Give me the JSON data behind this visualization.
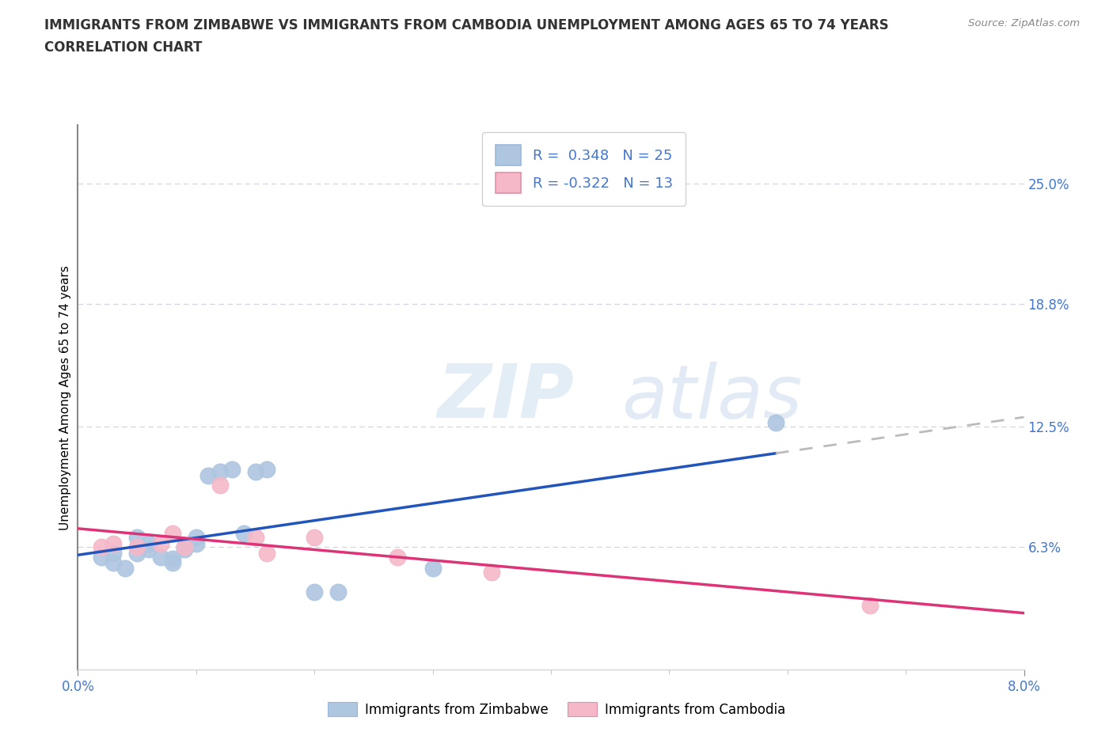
{
  "title_line1": "IMMIGRANTS FROM ZIMBABWE VS IMMIGRANTS FROM CAMBODIA UNEMPLOYMENT AMONG AGES 65 TO 74 YEARS",
  "title_line2": "CORRELATION CHART",
  "source_text": "Source: ZipAtlas.com",
  "ylabel": "Unemployment Among Ages 65 to 74 years",
  "xlim": [
    0.0,
    0.08
  ],
  "ylim": [
    0.0,
    0.28
  ],
  "ytick_labels": [
    "6.3%",
    "12.5%",
    "18.8%",
    "25.0%"
  ],
  "ytick_values": [
    0.063,
    0.125,
    0.188,
    0.25
  ],
  "zimbabwe_color": "#aec6e0",
  "cambodia_color": "#f4b8c8",
  "zimbabwe_line_color": "#2255bb",
  "cambodia_line_color": "#dd3377",
  "grid_color": "#d0d0e0",
  "background_color": "#ffffff",
  "zimbabwe_x": [
    0.002,
    0.003,
    0.003,
    0.004,
    0.005,
    0.005,
    0.006,
    0.006,
    0.007,
    0.008,
    0.008,
    0.009,
    0.009,
    0.01,
    0.01,
    0.011,
    0.012,
    0.013,
    0.014,
    0.015,
    0.016,
    0.02,
    0.022,
    0.03,
    0.059
  ],
  "zimbabwe_y": [
    0.058,
    0.06,
    0.055,
    0.052,
    0.06,
    0.068,
    0.062,
    0.065,
    0.058,
    0.055,
    0.057,
    0.063,
    0.062,
    0.065,
    0.068,
    0.1,
    0.102,
    0.103,
    0.07,
    0.102,
    0.103,
    0.04,
    0.04,
    0.052,
    0.127
  ],
  "cambodia_x": [
    0.002,
    0.003,
    0.005,
    0.007,
    0.008,
    0.009,
    0.012,
    0.015,
    0.016,
    0.02,
    0.027,
    0.035,
    0.067
  ],
  "cambodia_y": [
    0.063,
    0.065,
    0.063,
    0.065,
    0.07,
    0.063,
    0.095,
    0.068,
    0.06,
    0.068,
    0.058,
    0.05,
    0.033
  ],
  "legend_r1": "R =  0.348   N = 25",
  "legend_r2": "R = -0.322   N = 13"
}
